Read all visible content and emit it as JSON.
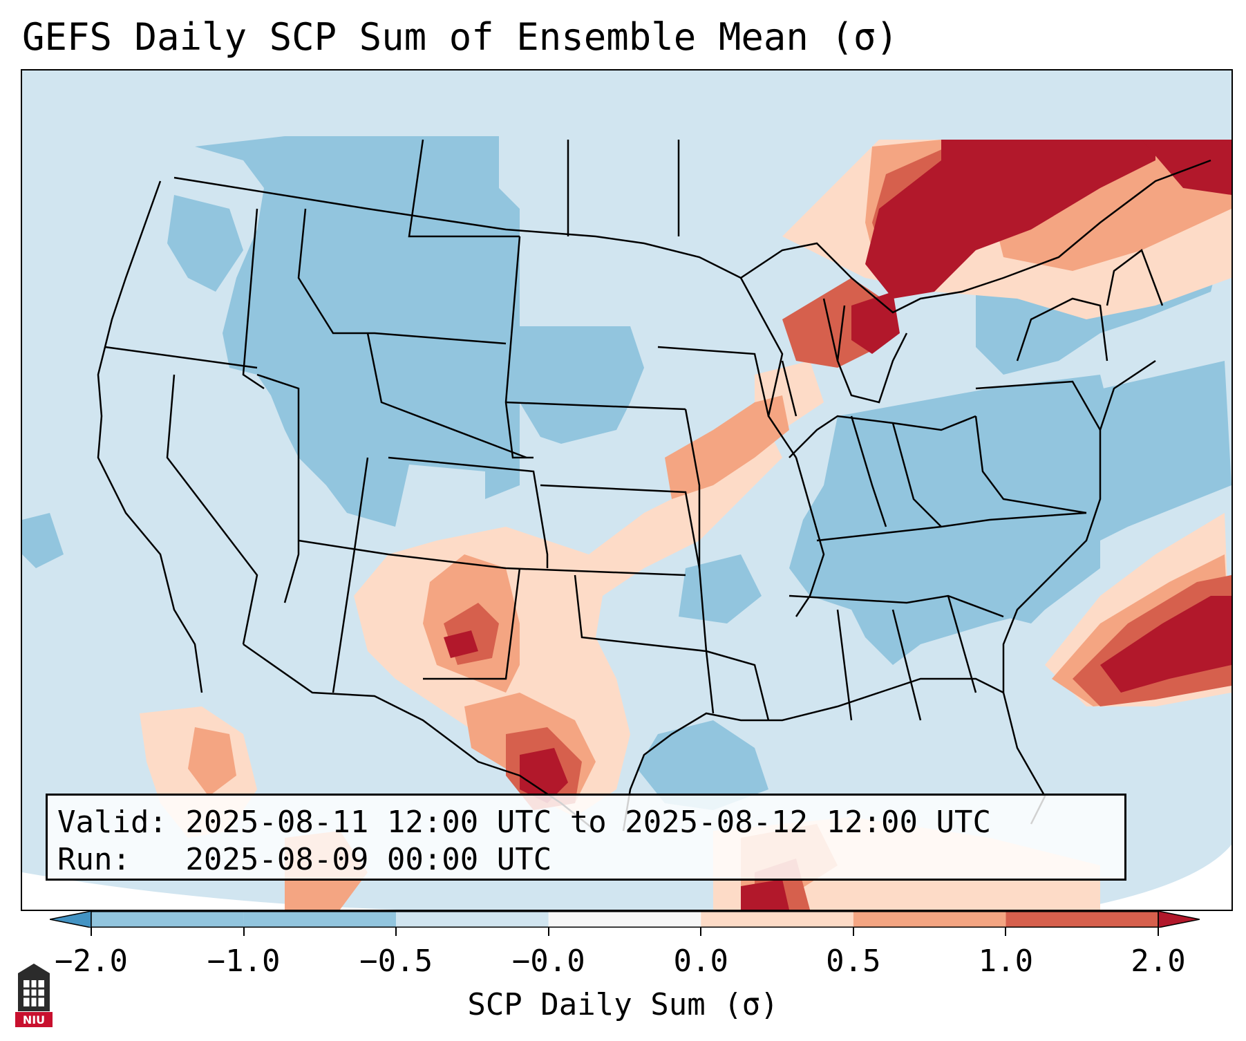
{
  "title": "GEFS Daily SCP Sum of Ensemble Mean (σ)",
  "info": {
    "valid": "Valid: 2025-08-11 12:00 UTC to 2025-08-12 12:00 UTC",
    "run": "Run:   2025-08-09 00:00 UTC"
  },
  "colorbar": {
    "label": "SCP Daily Sum (σ)",
    "ticks": [
      "−2.0",
      "−1.0",
      "−0.5",
      "−0.0",
      "0.0",
      "0.5",
      "1.0",
      "2.0"
    ],
    "bins": [
      {
        "color": "#4393c3"
      },
      {
        "color": "#92c5de"
      },
      {
        "color": "#92c5de"
      },
      {
        "color": "#d1e5f0"
      },
      {
        "color": "#f7f7f7"
      },
      {
        "color": "#fddbc7"
      },
      {
        "color": "#f4a582"
      },
      {
        "color": "#d6604d"
      },
      {
        "color": "#b2182b"
      }
    ],
    "extend": "both"
  },
  "map": {
    "region": "CONUS",
    "colors": {
      "ocean": "#d1e5f0",
      "neg_light": "#d1e5f0",
      "neg_mid": "#92c5de",
      "pos_light": "#fddbc7",
      "pos_mid": "#f4a582",
      "pos_high": "#d6604d",
      "pos_max": "#b2182b"
    }
  },
  "logo": {
    "text": "NIU",
    "icon": "niu-logo-icon"
  }
}
